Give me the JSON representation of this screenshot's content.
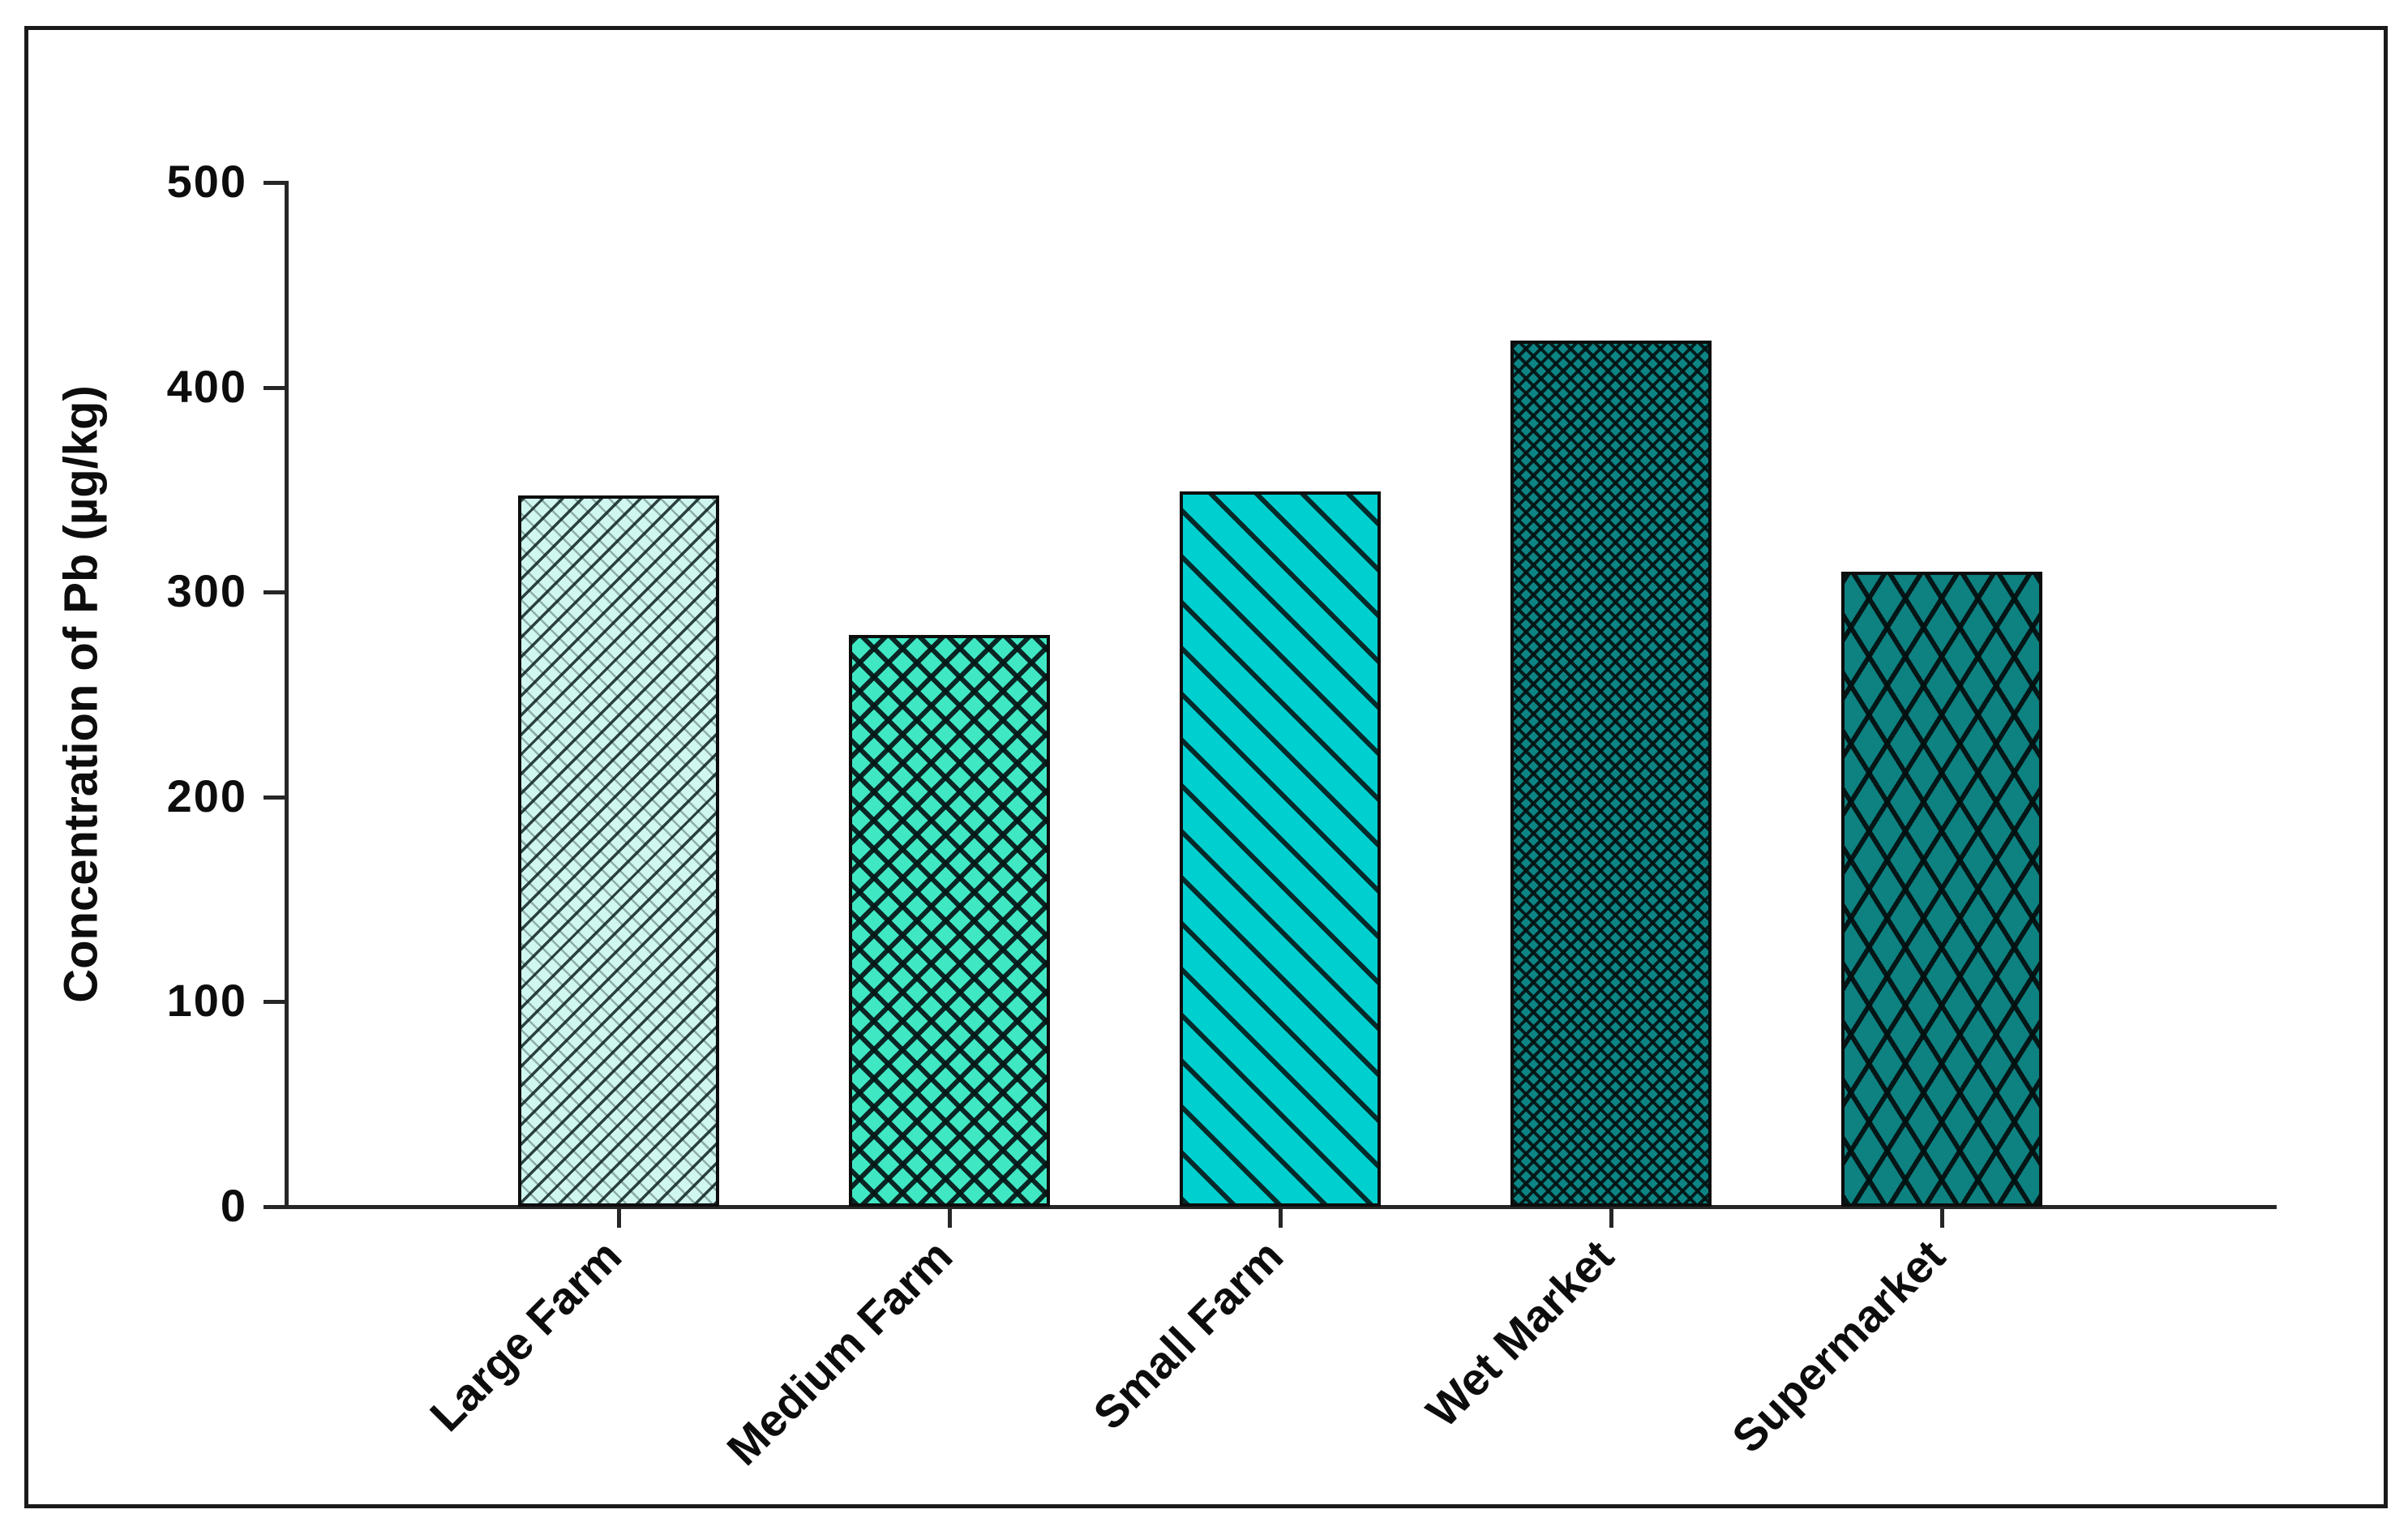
{
  "chart_data": {
    "type": "bar",
    "title": "",
    "xlabel": "",
    "ylabel": "Concentration of Pb (µg/kg)",
    "categories": [
      "Large Farm",
      "Medium Farm",
      "Small Farm",
      "Wet Market",
      "Supermarket"
    ],
    "values": [
      347,
      279,
      349,
      423,
      310
    ],
    "ylim": [
      0,
      500
    ],
    "yticks": [
      0,
      100,
      200,
      300,
      400,
      500
    ],
    "grid": false,
    "legend_position": "none",
    "axis_color": "#262626",
    "text_color": "#0d0d0d",
    "bar_styles": [
      {
        "category": "Large Farm",
        "fill": "#d0f6f0",
        "hatch": "thin-forward-diagonal"
      },
      {
        "category": "Medium Farm",
        "fill": "#3fe7c3",
        "hatch": "medium-crosshatch"
      },
      {
        "category": "Small Farm",
        "fill": "#00cfcf",
        "hatch": "wide-back-diagonal"
      },
      {
        "category": "Wet Market",
        "fill": "#0e8585",
        "hatch": "fine-dense-crosshatch"
      },
      {
        "category": "Supermarket",
        "fill": "#0e8181",
        "hatch": "large-diamond-crosshatch"
      }
    ]
  }
}
